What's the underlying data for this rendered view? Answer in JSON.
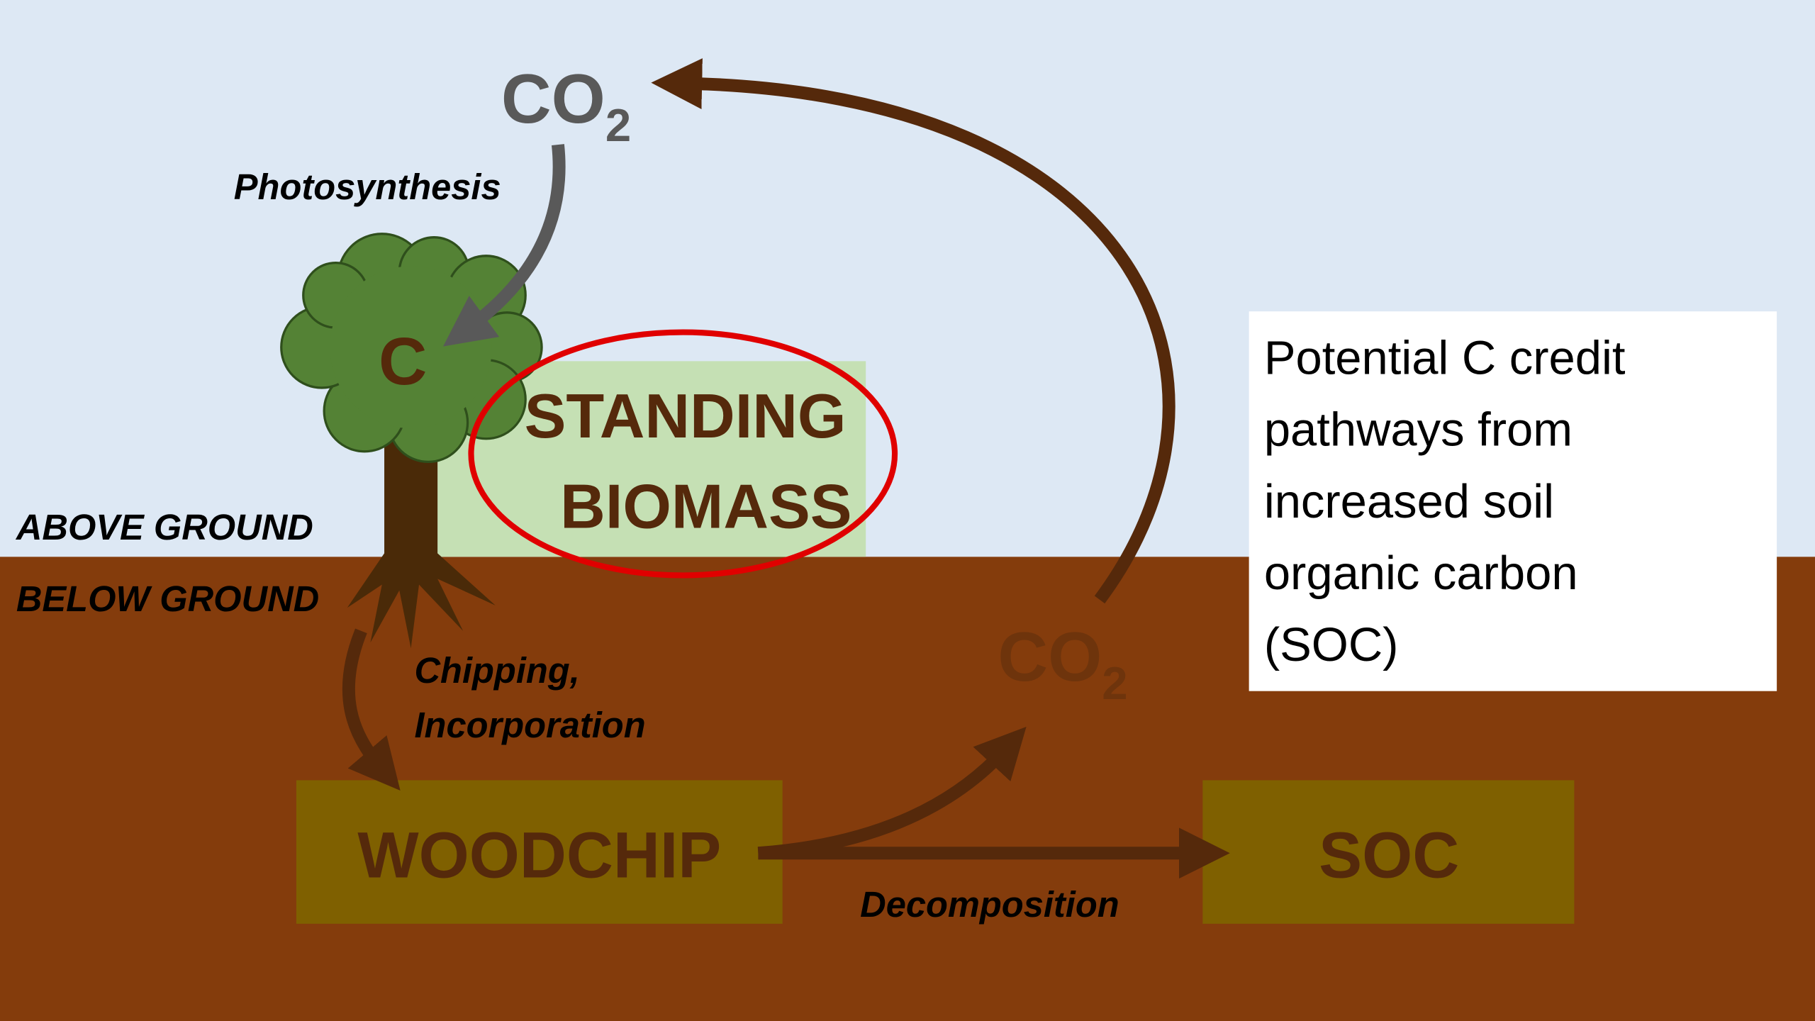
{
  "co2_top": {
    "main": "CO",
    "sub": "2"
  },
  "photosynthesis": "Photosynthesis",
  "tree_carbon": "C",
  "standing_biomass": [
    "STANDING",
    "BIOMASS"
  ],
  "above_ground": "ABOVE GROUND",
  "below_ground": "BELOW GROUND",
  "chipping": [
    "Chipping,",
    "Incorporation"
  ],
  "woodchip": "WOODCHIP",
  "soc": "SOC",
  "decomposition": "Decomposition",
  "co2_soil": {
    "main": "CO",
    "sub": "2"
  },
  "note": [
    "Potential C credit",
    "pathways from",
    "increased soil",
    "organic carbon",
    "(SOC)"
  ]
}
